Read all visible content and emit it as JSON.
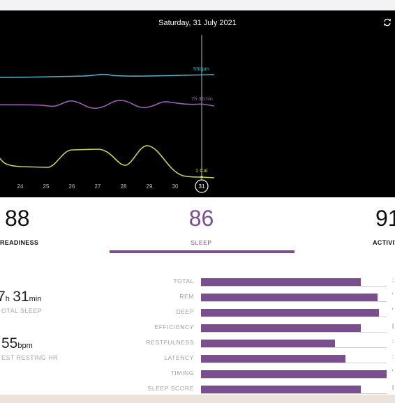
{
  "chart": {
    "date_title": "Saturday, 31 July 2021",
    "day_labels": [
      "24",
      "25",
      "26",
      "27",
      "28",
      "29",
      "30"
    ],
    "selected_day": "31",
    "hr_label": "55bpm",
    "sleep_label": "7h 31min",
    "activity_label": "1 Cal",
    "colors": {
      "hr": "#4fb3c9",
      "sleep": "#9b5fb5",
      "activity": "#c8d159"
    }
  },
  "scores": {
    "readiness": {
      "value": "88",
      "label": "READINESS"
    },
    "sleep": {
      "value": "86",
      "label": "SLEEP"
    },
    "activity": {
      "value": "91",
      "label": "ACTIVIT"
    }
  },
  "summary": {
    "total_sleep": {
      "hours": "7",
      "h_unit": "h",
      "minutes": "31",
      "min_unit": "min",
      "label": "OTAL SLEEP"
    },
    "resting_hr": {
      "value": "55",
      "unit": "bpm",
      "label": "EST RESTING HR"
    }
  },
  "contributors": [
    {
      "label": "TOTAL",
      "level": 0.86
    },
    {
      "label": "REM",
      "level": 0.95
    },
    {
      "label": "DEEP",
      "level": 0.96
    },
    {
      "label": "EFFICIENCY",
      "level": 0.86
    },
    {
      "label": "RESTFULNESS",
      "level": 0.72
    },
    {
      "label": "LATENCY",
      "level": 0.78
    },
    {
      "label": "TIMING",
      "level": 1.0
    },
    {
      "label": "SLEEP SCORE",
      "level": 0.86
    }
  ],
  "accent_color": "#7b4e8f"
}
